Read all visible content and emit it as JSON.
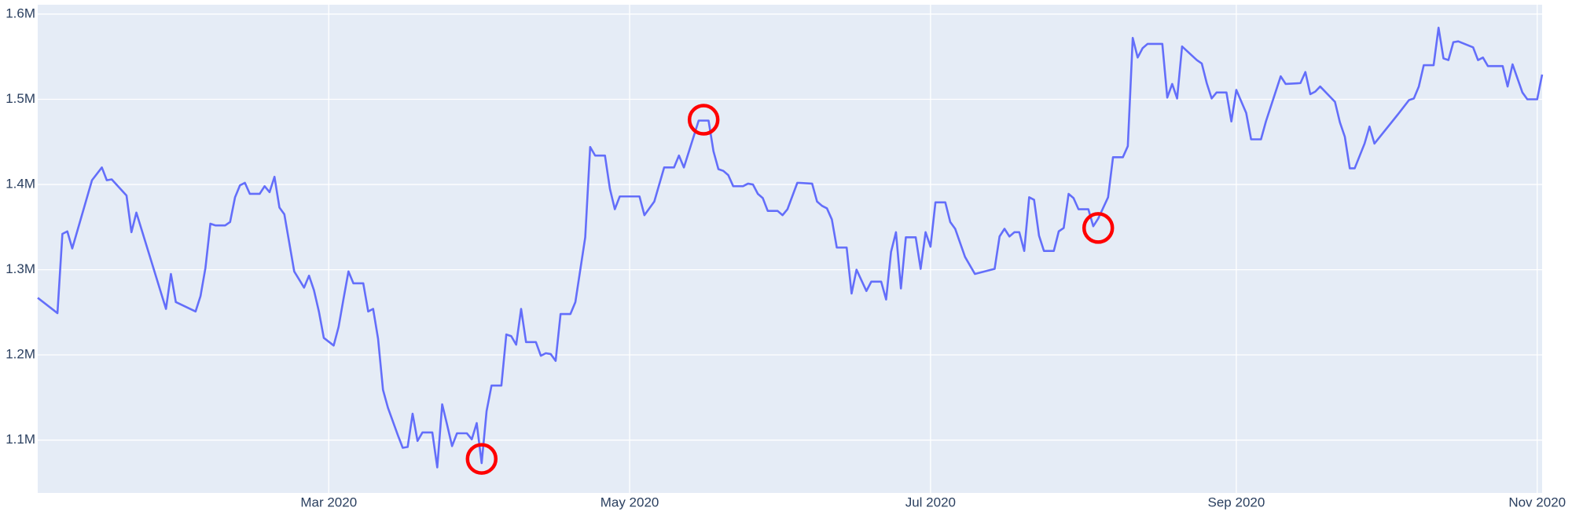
{
  "chart_data": {
    "type": "line",
    "color": "#636efa",
    "grid": true,
    "xlim": [
      "2020-01-02",
      "2020-11-02"
    ],
    "xticks": [
      {
        "value": "2020-03-01",
        "label": "Mar 2020"
      },
      {
        "value": "2020-05-01",
        "label": "May 2020"
      },
      {
        "value": "2020-07-01",
        "label": "Jul 2020"
      },
      {
        "value": "2020-09-01",
        "label": "Sep 2020"
      },
      {
        "value": "2020-11-01",
        "label": "Nov 2020"
      }
    ],
    "ylim": [
      1038000,
      1611000
    ],
    "yticks": [
      {
        "value": 1100000,
        "label": "1.1M"
      },
      {
        "value": 1200000,
        "label": "1.2M"
      },
      {
        "value": 1300000,
        "label": "1.3M"
      },
      {
        "value": 1400000,
        "label": "1.4M"
      },
      {
        "value": 1500000,
        "label": "1.5M"
      },
      {
        "value": 1600000,
        "label": "1.6M"
      }
    ],
    "x": [
      "2020-01-02",
      "2020-01-06",
      "2020-01-07",
      "2020-01-08",
      "2020-01-09",
      "2020-01-13",
      "2020-01-15",
      "2020-01-16",
      "2020-01-17",
      "2020-01-20",
      "2020-01-21",
      "2020-01-22",
      "2020-01-28",
      "2020-01-29",
      "2020-01-30",
      "2020-02-03",
      "2020-02-04",
      "2020-02-05",
      "2020-02-06",
      "2020-02-07",
      "2020-02-09",
      "2020-02-10",
      "2020-02-11",
      "2020-02-12",
      "2020-02-13",
      "2020-02-14",
      "2020-02-16",
      "2020-02-17",
      "2020-02-18",
      "2020-02-19",
      "2020-02-20",
      "2020-02-21",
      "2020-02-23",
      "2020-02-25",
      "2020-02-26",
      "2020-02-27",
      "2020-02-28",
      "2020-02-29",
      "2020-03-02",
      "2020-03-03",
      "2020-03-04",
      "2020-03-05",
      "2020-03-06",
      "2020-03-08",
      "2020-03-09",
      "2020-03-10",
      "2020-03-11",
      "2020-03-12",
      "2020-03-13",
      "2020-03-15",
      "2020-03-16",
      "2020-03-17",
      "2020-03-18",
      "2020-03-19",
      "2020-03-20",
      "2020-03-22",
      "2020-03-23",
      "2020-03-24",
      "2020-03-25",
      "2020-03-26",
      "2020-03-27",
      "2020-03-29",
      "2020-03-30",
      "2020-03-31",
      "2020-04-01",
      "2020-04-02",
      "2020-04-03",
      "2020-04-05",
      "2020-04-06",
      "2020-04-07",
      "2020-04-08",
      "2020-04-09",
      "2020-04-10",
      "2020-04-12",
      "2020-04-13",
      "2020-04-14",
      "2020-04-15",
      "2020-04-16",
      "2020-04-17",
      "2020-04-19",
      "2020-04-20",
      "2020-04-22",
      "2020-04-23",
      "2020-04-24",
      "2020-04-26",
      "2020-04-27",
      "2020-04-28",
      "2020-04-29",
      "2020-05-03",
      "2020-05-04",
      "2020-05-06",
      "2020-05-08",
      "2020-05-10",
      "2020-05-11",
      "2020-05-12",
      "2020-05-15",
      "2020-05-17",
      "2020-05-18",
      "2020-05-19",
      "2020-05-20",
      "2020-05-21",
      "2020-05-22",
      "2020-05-24",
      "2020-05-25",
      "2020-05-26",
      "2020-05-27",
      "2020-05-28",
      "2020-05-29",
      "2020-05-31",
      "2020-06-01",
      "2020-06-02",
      "2020-06-04",
      "2020-06-07",
      "2020-06-08",
      "2020-06-09",
      "2020-06-10",
      "2020-06-11",
      "2020-06-12",
      "2020-06-14",
      "2020-06-15",
      "2020-06-16",
      "2020-06-18",
      "2020-06-19",
      "2020-06-21",
      "2020-06-22",
      "2020-06-23",
      "2020-06-24",
      "2020-06-25",
      "2020-06-26",
      "2020-06-28",
      "2020-06-29",
      "2020-06-30",
      "2020-07-01",
      "2020-07-02",
      "2020-07-04",
      "2020-07-05",
      "2020-07-06",
      "2020-07-08",
      "2020-07-10",
      "2020-07-14",
      "2020-07-15",
      "2020-07-16",
      "2020-07-17",
      "2020-07-18",
      "2020-07-19",
      "2020-07-20",
      "2020-07-21",
      "2020-07-22",
      "2020-07-23",
      "2020-07-24",
      "2020-07-26",
      "2020-07-27",
      "2020-07-28",
      "2020-07-29",
      "2020-07-30",
      "2020-07-31",
      "2020-08-02",
      "2020-08-03",
      "2020-08-04",
      "2020-08-06",
      "2020-08-07",
      "2020-08-09",
      "2020-08-10",
      "2020-08-11",
      "2020-08-12",
      "2020-08-13",
      "2020-08-14",
      "2020-08-17",
      "2020-08-18",
      "2020-08-19",
      "2020-08-20",
      "2020-08-21",
      "2020-08-24",
      "2020-08-25",
      "2020-08-26",
      "2020-08-27",
      "2020-08-28",
      "2020-08-30",
      "2020-08-31",
      "2020-09-01",
      "2020-09-03",
      "2020-09-04",
      "2020-09-06",
      "2020-09-07",
      "2020-09-10",
      "2020-09-11",
      "2020-09-14",
      "2020-09-15",
      "2020-09-16",
      "2020-09-17",
      "2020-09-18",
      "2020-09-21",
      "2020-09-22",
      "2020-09-23",
      "2020-09-24",
      "2020-09-25",
      "2020-09-27",
      "2020-09-28",
      "2020-09-29",
      "2020-10-04",
      "2020-10-06",
      "2020-10-07",
      "2020-10-08",
      "2020-10-09",
      "2020-10-11",
      "2020-10-12",
      "2020-10-13",
      "2020-10-14",
      "2020-10-15",
      "2020-10-16",
      "2020-10-19",
      "2020-10-20",
      "2020-10-21",
      "2020-10-22",
      "2020-10-25",
      "2020-10-26",
      "2020-10-27",
      "2020-10-29",
      "2020-10-30",
      "2020-11-01",
      "2020-11-02"
    ],
    "values": [
      1267000,
      1249000,
      1342000,
      1345000,
      1325000,
      1405000,
      1420000,
      1405000,
      1406000,
      1387000,
      1344000,
      1367000,
      1254000,
      1295000,
      1262000,
      1251000,
      1269000,
      1302000,
      1354000,
      1352000,
      1352000,
      1356000,
      1385000,
      1399000,
      1402000,
      1389000,
      1389000,
      1398000,
      1391000,
      1409000,
      1373000,
      1365000,
      1298000,
      1279000,
      1293000,
      1276000,
      1251000,
      1220000,
      1211000,
      1233000,
      1266000,
      1298000,
      1284000,
      1284000,
      1251000,
      1254000,
      1219000,
      1159000,
      1138000,
      1106000,
      1091000,
      1092000,
      1131000,
      1099000,
      1109000,
      1109000,
      1068000,
      1142000,
      1118000,
      1093000,
      1108000,
      1108000,
      1101000,
      1120000,
      1073000,
      1134000,
      1164000,
      1164000,
      1224000,
      1222000,
      1212000,
      1254000,
      1215000,
      1215000,
      1199000,
      1202000,
      1201000,
      1193000,
      1248000,
      1248000,
      1262000,
      1338000,
      1444000,
      1434000,
      1434000,
      1395000,
      1371000,
      1386000,
      1386000,
      1364000,
      1380000,
      1420000,
      1420000,
      1434000,
      1420000,
      1475000,
      1475000,
      1439000,
      1418000,
      1416000,
      1411000,
      1398000,
      1398000,
      1401000,
      1400000,
      1389000,
      1384000,
      1369000,
      1369000,
      1364000,
      1371000,
      1402000,
      1401000,
      1380000,
      1375000,
      1372000,
      1359000,
      1326000,
      1326000,
      1272000,
      1300000,
      1275000,
      1286000,
      1286000,
      1265000,
      1321000,
      1344000,
      1278000,
      1338000,
      1338000,
      1301000,
      1344000,
      1327000,
      1379000,
      1379000,
      1356000,
      1348000,
      1315000,
      1295000,
      1301000,
      1339000,
      1348000,
      1339000,
      1344000,
      1344000,
      1322000,
      1385000,
      1382000,
      1340000,
      1322000,
      1322000,
      1345000,
      1349000,
      1389000,
      1384000,
      1371000,
      1371000,
      1351000,
      1360000,
      1385000,
      1432000,
      1432000,
      1445000,
      1572000,
      1549000,
      1560000,
      1565000,
      1565000,
      1502000,
      1518000,
      1501000,
      1562000,
      1546000,
      1542000,
      1519000,
      1501000,
      1508000,
      1508000,
      1474000,
      1511000,
      1484000,
      1453000,
      1453000,
      1474000,
      1527000,
      1518000,
      1519000,
      1532000,
      1506000,
      1509000,
      1515000,
      1497000,
      1473000,
      1456000,
      1419000,
      1419000,
      1448000,
      1468000,
      1448000,
      1484000,
      1499000,
      1501000,
      1515000,
      1540000,
      1540000,
      1584000,
      1548000,
      1546000,
      1567000,
      1568000,
      1561000,
      1546000,
      1549000,
      1539000,
      1539000,
      1515000,
      1541000,
      1508000,
      1500000,
      1500000,
      1529000
    ],
    "markers": {
      "color": "#ff0000",
      "x": [
        "2020-04-01",
        "2020-05-16",
        "2020-08-04"
      ],
      "values": [
        1078000,
        1476000,
        1349000
      ]
    }
  }
}
